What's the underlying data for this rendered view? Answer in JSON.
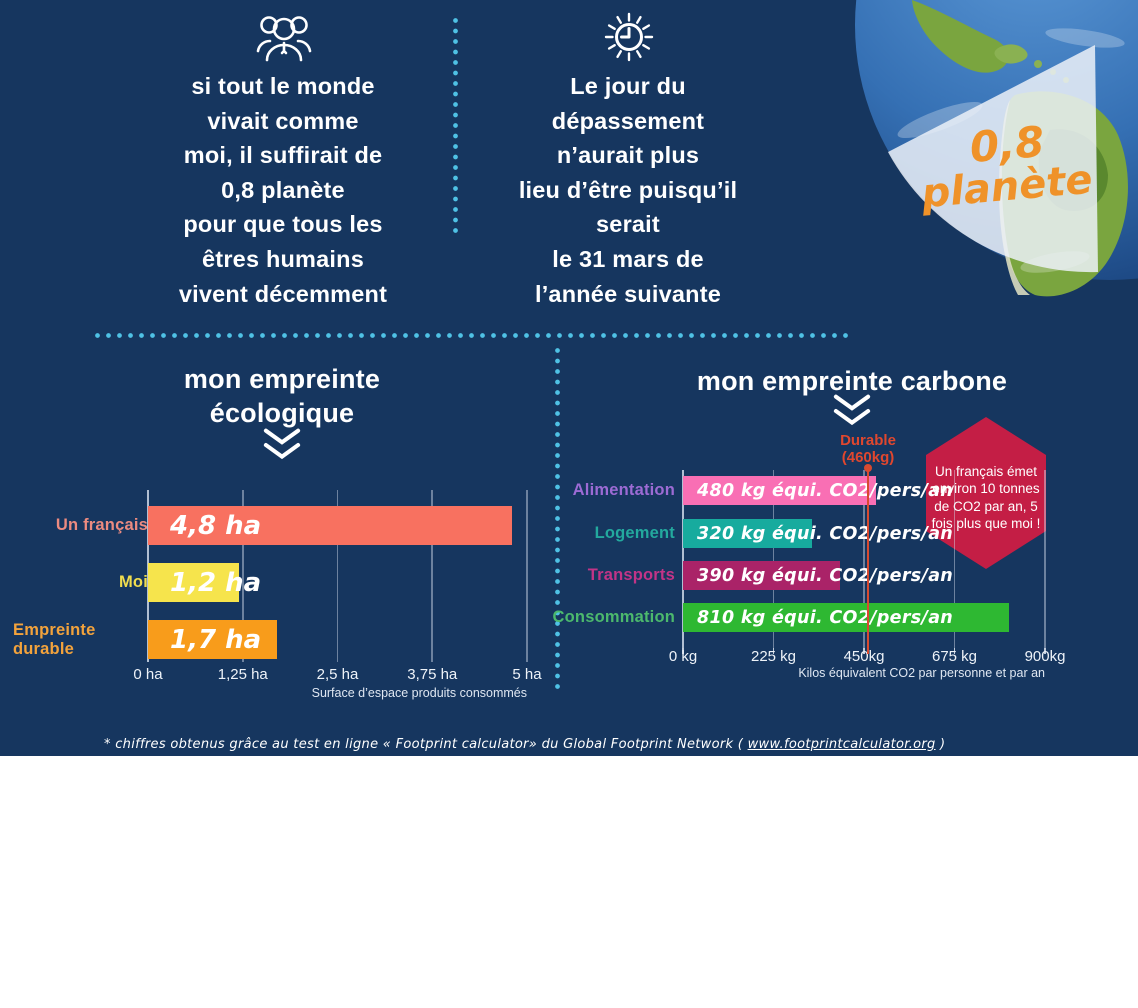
{
  "colors": {
    "panel_background": "#16365f",
    "dotted_line": "#4fc2e5",
    "text": "#ffffff",
    "planet_text": "#ef9229",
    "hexagon": "#c41e45",
    "reference_line": "#e0472e"
  },
  "icons": {
    "top_left": "people-group-icon",
    "top_middle": "sun-clock-icon",
    "section_arrow": "double-chevron-down-icon"
  },
  "top": {
    "block1": {
      "lines": [
        "si tout le monde",
        "vivait comme",
        "moi, il suffirait de",
        "0,8 planète",
        "pour que tous les",
        "êtres humains",
        "vivent décemment"
      ]
    },
    "block2": {
      "lines": [
        "Le jour du",
        "dépassement",
        "n’aurait plus",
        "lieu d’être puisqu’il",
        "serait",
        "le 31 mars de",
        "l’année suivante"
      ]
    },
    "planet_badge": {
      "value": "0,8",
      "word": "planète"
    }
  },
  "chart_data": [
    {
      "type": "bar",
      "orientation": "horizontal",
      "title": "mon empreinte écologique",
      "title_lines": [
        "mon empreinte",
        "écologique"
      ],
      "categories": [
        "Un français",
        "Moi",
        "Empreinte durable"
      ],
      "values": [
        4.8,
        1.2,
        1.7
      ],
      "bar_labels": [
        "4,8 ha",
        "1,2 ha",
        "1,7 ha"
      ],
      "bar_colors": [
        "#f87160",
        "#f6e44c",
        "#f89c1b"
      ],
      "category_colors": [
        "#ec8b80",
        "#f0dd4e",
        "#f3a33c"
      ],
      "xticks": [
        "0 ha",
        "1,25 ha",
        "2,5 ha",
        "3,75 ha",
        "5 ha"
      ],
      "xlim": [
        0,
        5
      ],
      "xlabel": "Surface d’espace produits consommés",
      "grid": true,
      "legend": "none"
    },
    {
      "type": "bar",
      "orientation": "horizontal",
      "title": "mon empreinte carbone",
      "categories": [
        "Alimentation",
        "Logement",
        "Transports",
        "Consommation"
      ],
      "values": [
        480,
        320,
        390,
        810
      ],
      "bar_labels": [
        "480 kg équi. CO2/pers/an",
        "320 kg équi. CO2/pers/an",
        "390 kg équi. CO2/pers/an",
        "810 kg équi. CO2/pers/an"
      ],
      "bar_colors": [
        "#f96fb4",
        "#17ab9e",
        "#aa2368",
        "#2eb832"
      ],
      "category_colors": [
        "#9c6bd4",
        "#23a99e",
        "#c23487",
        "#4cb96d"
      ],
      "xticks": [
        "0 kg",
        "225 kg",
        "450kg",
        "675 kg",
        "900kg"
      ],
      "xlim": [
        0,
        900
      ],
      "xlabel": "Kilos équivalent CO2 par personne et par an",
      "grid": true,
      "legend": "none",
      "reference_line": {
        "value": 460,
        "label_line1": "Durable",
        "label_line2": "(460kg)"
      }
    }
  ],
  "annotation_hexagon": {
    "lines": [
      "Un français émet",
      "environ 10 tonnes",
      "de CO2 par an, 5",
      "fois plus que moi !"
    ]
  },
  "footnote": {
    "prefix": "* chiffres obtenus grâce au test en ligne « Footprint calculator» du Global Footprint Network ( ",
    "link_text": "www.footprintcalculator.org",
    "suffix": " )"
  }
}
